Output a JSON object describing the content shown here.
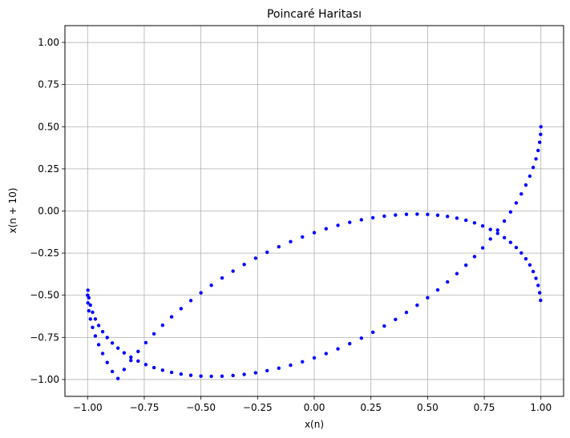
{
  "chart_data": {
    "type": "scatter",
    "title": "Poincaré Haritası",
    "xlabel": "x(n)",
    "ylabel": "x(n + 10)",
    "xlim": [
      -1.1,
      1.1
    ],
    "ylim": [
      -1.1,
      1.1
    ],
    "x_ticks": [
      -1.0,
      -0.75,
      -0.5,
      -0.25,
      0.0,
      0.25,
      0.5,
      0.75,
      1.0
    ],
    "y_ticks": [
      -1.0,
      -0.75,
      -0.5,
      -0.25,
      0.0,
      0.25,
      0.5,
      0.75,
      1.0
    ],
    "x_tick_labels": [
      "−1.00",
      "−0.75",
      "−0.50",
      "−0.25",
      "0.00",
      "0.25",
      "0.50",
      "0.75",
      "1.00"
    ],
    "y_tick_labels": [
      "−1.00",
      "−0.75",
      "−0.50",
      "−0.25",
      "0.00",
      "0.25",
      "0.50",
      "0.75",
      "1.00"
    ],
    "grid": true,
    "marker_color": "#0000ff",
    "series": [
      {
        "x": [
          1.0,
          0.9986,
          0.9945,
          0.9877,
          0.9781,
          0.9659,
          0.9511,
          0.9336,
          0.9135,
          0.891,
          0.866,
          0.8387,
          0.809,
          0.7771,
          0.7431,
          0.7071,
          0.6691,
          0.6293,
          0.5878,
          0.5446,
          0.5,
          0.454,
          0.4067,
          0.3584,
          0.309,
          0.2588,
          0.2079,
          0.1564,
          0.1045,
          0.0523,
          0.0,
          -0.0523,
          -0.1045,
          -0.1564,
          -0.2079,
          -0.2588,
          -0.309,
          -0.3584,
          -0.4067,
          -0.454,
          -0.5,
          -0.5446,
          -0.5878,
          -0.6293,
          -0.6691,
          -0.7071,
          -0.7431,
          -0.7771,
          -0.809,
          -0.8387,
          -0.866,
          -0.891,
          -0.9135,
          -0.9336,
          -0.9511,
          -0.9659,
          -0.9781,
          -0.9877,
          -0.9945,
          -0.9986,
          -1.0,
          -0.9986,
          -0.9945,
          -0.9877,
          -0.9781,
          -0.9659,
          -0.9511,
          -0.9336,
          -0.9135,
          -0.891,
          -0.866,
          -0.8387,
          -0.809,
          -0.7771,
          -0.7431,
          -0.7071,
          -0.6691,
          -0.6293,
          -0.5878,
          -0.5446,
          -0.5,
          -0.454,
          -0.4067,
          -0.3584,
          -0.309,
          -0.2588,
          -0.2079,
          -0.1564,
          -0.1045,
          -0.0523,
          0.0,
          0.0523,
          0.1045,
          0.1564,
          0.2079,
          0.2588,
          0.309,
          0.3584,
          0.4067,
          0.454,
          0.5,
          0.5446,
          0.5878,
          0.6293,
          0.6691,
          0.7071,
          0.7431,
          0.7771,
          0.809,
          0.8387,
          0.866,
          0.891,
          0.9135,
          0.9336,
          0.9511,
          0.9659,
          0.9781,
          0.9877,
          0.9945,
          0.9986
        ],
        "y": [
          0.5,
          0.4546,
          0.4075,
          0.359,
          0.3092,
          0.2584,
          0.2067,
          0.1542,
          0.1012,
          0.0478,
          -0.0059,
          -0.0596,
          -0.1131,
          -0.1662,
          -0.2188,
          -0.2707,
          -0.3218,
          -0.3718,
          -0.4207,
          -0.4684,
          -0.5146,
          -0.5592,
          -0.6022,
          -0.6434,
          -0.6826,
          -0.7198,
          -0.7548,
          -0.7876,
          -0.818,
          -0.8461,
          -0.8716,
          -0.8946,
          -0.915,
          -0.9327,
          -0.9477,
          -0.96,
          -0.9695,
          -0.9762,
          -0.9801,
          -0.9812,
          -0.9795,
          -0.975,
          -0.9677,
          -0.9576,
          -0.9449,
          -0.9294,
          -0.9113,
          -0.8906,
          -0.8674,
          -0.8418,
          -0.8137,
          -0.7834,
          -0.7509,
          -0.7162,
          -0.6795,
          -0.641,
          -0.6006,
          -0.5586,
          -0.515,
          -0.47,
          -0.5,
          -0.5454,
          -0.5925,
          -0.641,
          -0.6908,
          -0.7416,
          -0.7933,
          -0.8458,
          -0.8988,
          -0.9522,
          -0.9941,
          -0.9404,
          -0.8869,
          -0.8338,
          -0.7812,
          -0.7293,
          -0.6782,
          -0.6282,
          -0.5793,
          -0.5316,
          -0.4854,
          -0.4408,
          -0.3978,
          -0.3566,
          -0.3174,
          -0.2802,
          -0.2452,
          -0.2124,
          -0.182,
          -0.1539,
          -0.1284,
          -0.1054,
          -0.085,
          -0.0673,
          -0.0523,
          -0.04,
          -0.0305,
          -0.0238,
          -0.0199,
          -0.0188,
          -0.0205,
          -0.025,
          -0.0323,
          -0.0424,
          -0.0551,
          -0.0706,
          -0.0887,
          -0.1094,
          -0.1326,
          -0.1582,
          -0.1863,
          -0.2166,
          -0.2491,
          -0.2838,
          -0.3205,
          -0.359,
          -0.3994,
          -0.4414,
          -0.485,
          -0.53
        ]
      }
    ]
  }
}
